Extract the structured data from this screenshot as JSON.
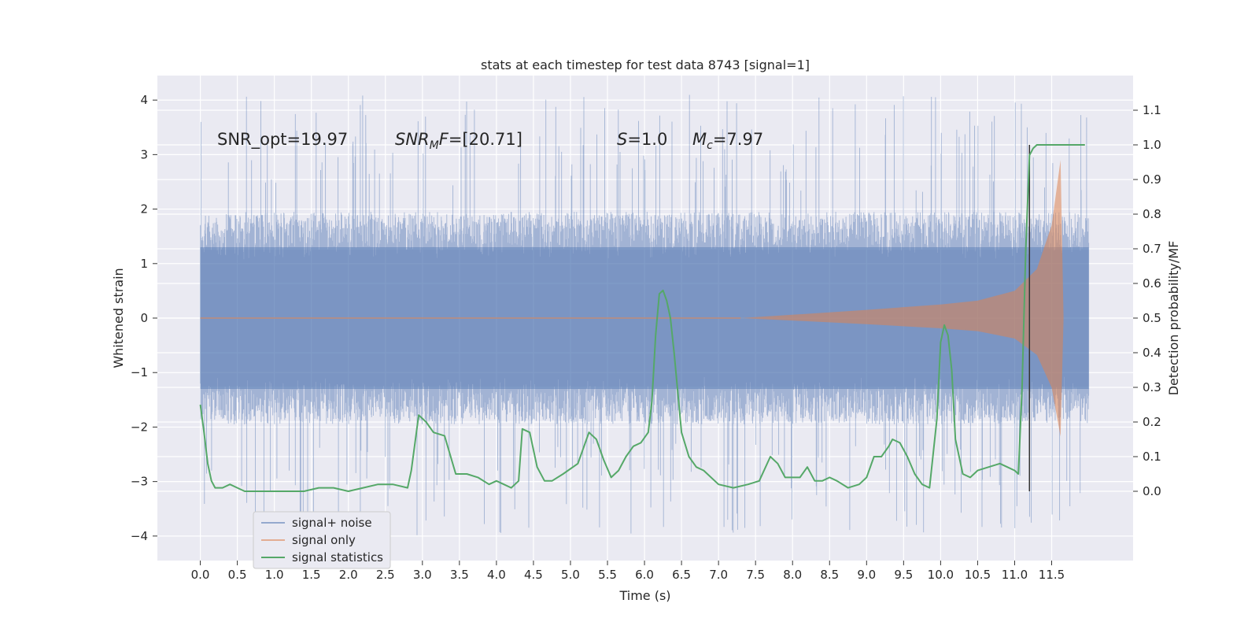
{
  "chart_data": {
    "type": "line",
    "title": "stats at each timestep for test data 8743 [signal=1]",
    "xlabel": "Time (s)",
    "ylabel_left": "Whitened strain",
    "ylabel_right": "Detection probability/MF",
    "xlim": [
      -0.58,
      12.6
    ],
    "ylim_left": [
      -4.45,
      4.45
    ],
    "ylim_right": [
      -0.2,
      1.2
    ],
    "x_ticks": [
      "0.0",
      "0.5",
      "1.0",
      "1.5",
      "2.0",
      "2.5",
      "3.0",
      "3.5",
      "4.0",
      "4.5",
      "5.0",
      "5.5",
      "6.0",
      "6.5",
      "7.0",
      "7.5",
      "8.0",
      "8.5",
      "9.0",
      "9.5",
      "10.0",
      "10.5",
      "11.0",
      "11.5"
    ],
    "y_ticks_left": [
      "4",
      "3",
      "2",
      "1",
      "0",
      "−1",
      "−2",
      "−3",
      "−4"
    ],
    "y_ticks_right": [
      "1.1",
      "1.0",
      "0.9",
      "0.8",
      "0.7",
      "0.6",
      "0.5",
      "0.4",
      "0.3",
      "0.2",
      "0.1",
      "0.0"
    ],
    "grid": true,
    "legend_position": "lower-left",
    "colors": {
      "background": "#eaeaf2",
      "grid": "#ffffff",
      "noise": "#4c72b0",
      "signal": "#dd8452",
      "statistics": "#55a868",
      "marker": "#333333"
    },
    "annotations": {
      "snr_opt": "SNR_opt=19.97",
      "snr_mf_label": "SNR",
      "snr_mf_sub": "M",
      "snr_mf_tail": "F=[20.71]",
      "s_label": "S",
      "s_value": "=1.0",
      "mc_label": "M",
      "mc_sub": "c",
      "mc_value": "=7.97"
    },
    "detection_time": 11.2,
    "noise_band": {
      "x_start": 0.0,
      "x_end": 12.0,
      "dense_min": -1.95,
      "dense_max": 1.95,
      "core_min": -1.3,
      "core_max": 1.3,
      "max_peak": 4.1,
      "min_peak": -4.0
    },
    "signal_chirp": {
      "x_start": 7.3,
      "x_end": 11.7,
      "amplitudes": [
        [
          7.3,
          0.0
        ],
        [
          8.0,
          0.06
        ],
        [
          9.0,
          0.15
        ],
        [
          10.0,
          0.25
        ],
        [
          10.5,
          0.32
        ],
        [
          11.0,
          0.5
        ],
        [
          11.3,
          0.9
        ],
        [
          11.5,
          1.7
        ],
        [
          11.62,
          2.9
        ],
        [
          11.66,
          0.0
        ]
      ]
    },
    "series": [
      {
        "name": "signal+ noise",
        "style": "filled noise trace"
      },
      {
        "name": "signal only",
        "style": "filled chirp"
      },
      {
        "name": "signal statistics",
        "x": [
          0.0,
          0.05,
          0.1,
          0.15,
          0.2,
          0.3,
          0.4,
          0.5,
          0.6,
          0.8,
          1.0,
          1.2,
          1.4,
          1.6,
          1.8,
          2.0,
          2.2,
          2.4,
          2.6,
          2.8,
          2.85,
          2.95,
          3.05,
          3.15,
          3.3,
          3.45,
          3.6,
          3.75,
          3.9,
          4.0,
          4.1,
          4.2,
          4.3,
          4.35,
          4.45,
          4.55,
          4.65,
          4.75,
          4.9,
          5.1,
          5.25,
          5.35,
          5.45,
          5.55,
          5.65,
          5.75,
          5.85,
          5.95,
          6.05,
          6.1,
          6.15,
          6.2,
          6.25,
          6.3,
          6.35,
          6.4,
          6.5,
          6.6,
          6.7,
          6.8,
          7.0,
          7.2,
          7.4,
          7.55,
          7.7,
          7.8,
          7.9,
          8.0,
          8.1,
          8.2,
          8.3,
          8.4,
          8.5,
          8.6,
          8.75,
          8.9,
          9.0,
          9.1,
          9.2,
          9.3,
          9.35,
          9.45,
          9.55,
          9.65,
          9.75,
          9.85,
          9.95,
          10.0,
          10.05,
          10.1,
          10.15,
          10.2,
          10.3,
          10.4,
          10.5,
          10.65,
          10.8,
          10.9,
          11.0,
          11.05,
          11.1,
          11.15,
          11.2,
          11.25,
          11.3,
          11.35,
          11.4,
          11.5,
          11.6,
          11.7,
          11.8,
          11.9,
          11.95
        ],
        "y": [
          0.25,
          0.17,
          0.08,
          0.03,
          0.01,
          0.01,
          0.02,
          0.01,
          0.0,
          0.0,
          0.0,
          0.0,
          0.0,
          0.01,
          0.01,
          0.0,
          0.01,
          0.02,
          0.02,
          0.01,
          0.06,
          0.22,
          0.2,
          0.17,
          0.16,
          0.05,
          0.05,
          0.04,
          0.02,
          0.03,
          0.02,
          0.01,
          0.03,
          0.18,
          0.17,
          0.07,
          0.03,
          0.03,
          0.05,
          0.08,
          0.17,
          0.15,
          0.09,
          0.04,
          0.06,
          0.1,
          0.13,
          0.14,
          0.17,
          0.26,
          0.45,
          0.57,
          0.58,
          0.55,
          0.5,
          0.4,
          0.17,
          0.1,
          0.07,
          0.06,
          0.02,
          0.01,
          0.02,
          0.03,
          0.1,
          0.08,
          0.04,
          0.04,
          0.04,
          0.07,
          0.03,
          0.03,
          0.04,
          0.03,
          0.01,
          0.02,
          0.04,
          0.1,
          0.1,
          0.13,
          0.15,
          0.14,
          0.1,
          0.05,
          0.02,
          0.01,
          0.21,
          0.43,
          0.48,
          0.45,
          0.35,
          0.15,
          0.05,
          0.04,
          0.06,
          0.07,
          0.08,
          0.07,
          0.06,
          0.05,
          0.3,
          0.7,
          0.97,
          0.99,
          1.0,
          1.0,
          1.0,
          1.0,
          1.0,
          1.0,
          1.0,
          1.0,
          1.0
        ]
      }
    ]
  }
}
